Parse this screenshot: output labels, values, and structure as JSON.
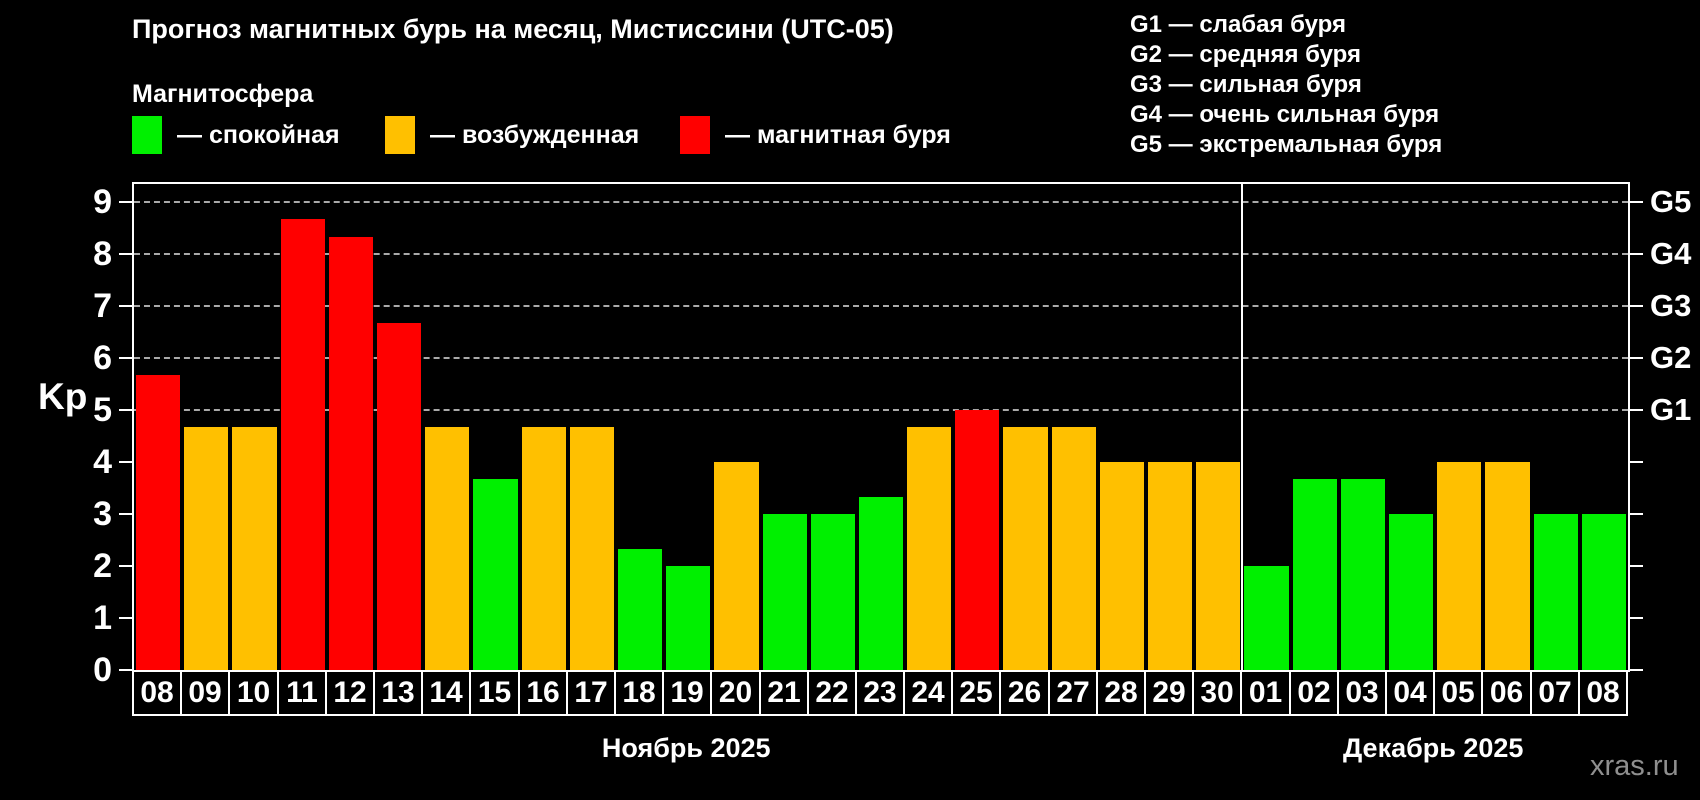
{
  "header": {
    "title": "Прогноз магнитных бурь на месяц, Мистиссини (UTC-05)",
    "subtitle": "Магнитосфера"
  },
  "magnetosphere_legend": [
    {
      "label": "— спокойная",
      "color": "#00f000"
    },
    {
      "label": "— возбужденная",
      "color": "#ffc000"
    },
    {
      "label": "— магнитная буря",
      "color": "#ff0000"
    }
  ],
  "g_scale_legend": [
    "G1 — слабая буря",
    "G2 — средняя буря",
    "G3 — сильная буря",
    "G4 — очень сильная буря",
    "G5 — экстремальная буря"
  ],
  "watermark": "xras.ru",
  "chart_data": {
    "type": "bar",
    "title": "Прогноз магнитных бурь на месяц, Мистиссини (UTC-05)",
    "ylabel": "Kp",
    "ylim": [
      0,
      9.35
    ],
    "yticks": [
      0,
      1,
      2,
      3,
      4,
      5,
      6,
      7,
      8,
      9
    ],
    "gridlines_kp": [
      5,
      6,
      7,
      8,
      9
    ],
    "grid": "dashed horizontal at G-levels",
    "right_axis_labels": [
      {
        "label": "G1",
        "kp": 5
      },
      {
        "label": "G2",
        "kp": 6
      },
      {
        "label": "G3",
        "kp": 7
      },
      {
        "label": "G4",
        "kp": 8
      },
      {
        "label": "G5",
        "kp": 9
      }
    ],
    "months": [
      {
        "label": "Ноябрь 2025",
        "days": 23
      },
      {
        "label": "Декабрь 2025",
        "days": 8
      }
    ],
    "categories": [
      "08",
      "09",
      "10",
      "11",
      "12",
      "13",
      "14",
      "15",
      "16",
      "17",
      "18",
      "19",
      "20",
      "21",
      "22",
      "23",
      "24",
      "25",
      "26",
      "27",
      "28",
      "29",
      "30",
      "01",
      "02",
      "03",
      "04",
      "05",
      "06",
      "07",
      "08"
    ],
    "values": [
      5.67,
      4.67,
      4.67,
      8.67,
      8.33,
      6.67,
      4.67,
      3.67,
      4.67,
      4.67,
      2.33,
      2.0,
      4.0,
      3.0,
      3.0,
      3.33,
      4.67,
      5.0,
      4.67,
      4.67,
      4.0,
      4.0,
      4.0,
      2.0,
      3.67,
      3.67,
      3.0,
      4.0,
      4.0,
      3.0,
      3.0
    ],
    "bar_kinds": [
      "storm",
      "excited",
      "excited",
      "storm",
      "storm",
      "storm",
      "excited",
      "quiet",
      "excited",
      "excited",
      "quiet",
      "quiet",
      "excited",
      "quiet",
      "quiet",
      "quiet",
      "excited",
      "storm",
      "excited",
      "excited",
      "excited",
      "excited",
      "excited",
      "quiet",
      "quiet",
      "quiet",
      "quiet",
      "excited",
      "excited",
      "quiet",
      "quiet"
    ],
    "colors_by_kind": {
      "quiet": "#00f000",
      "excited": "#ffc000",
      "storm": "#ff0000"
    }
  }
}
